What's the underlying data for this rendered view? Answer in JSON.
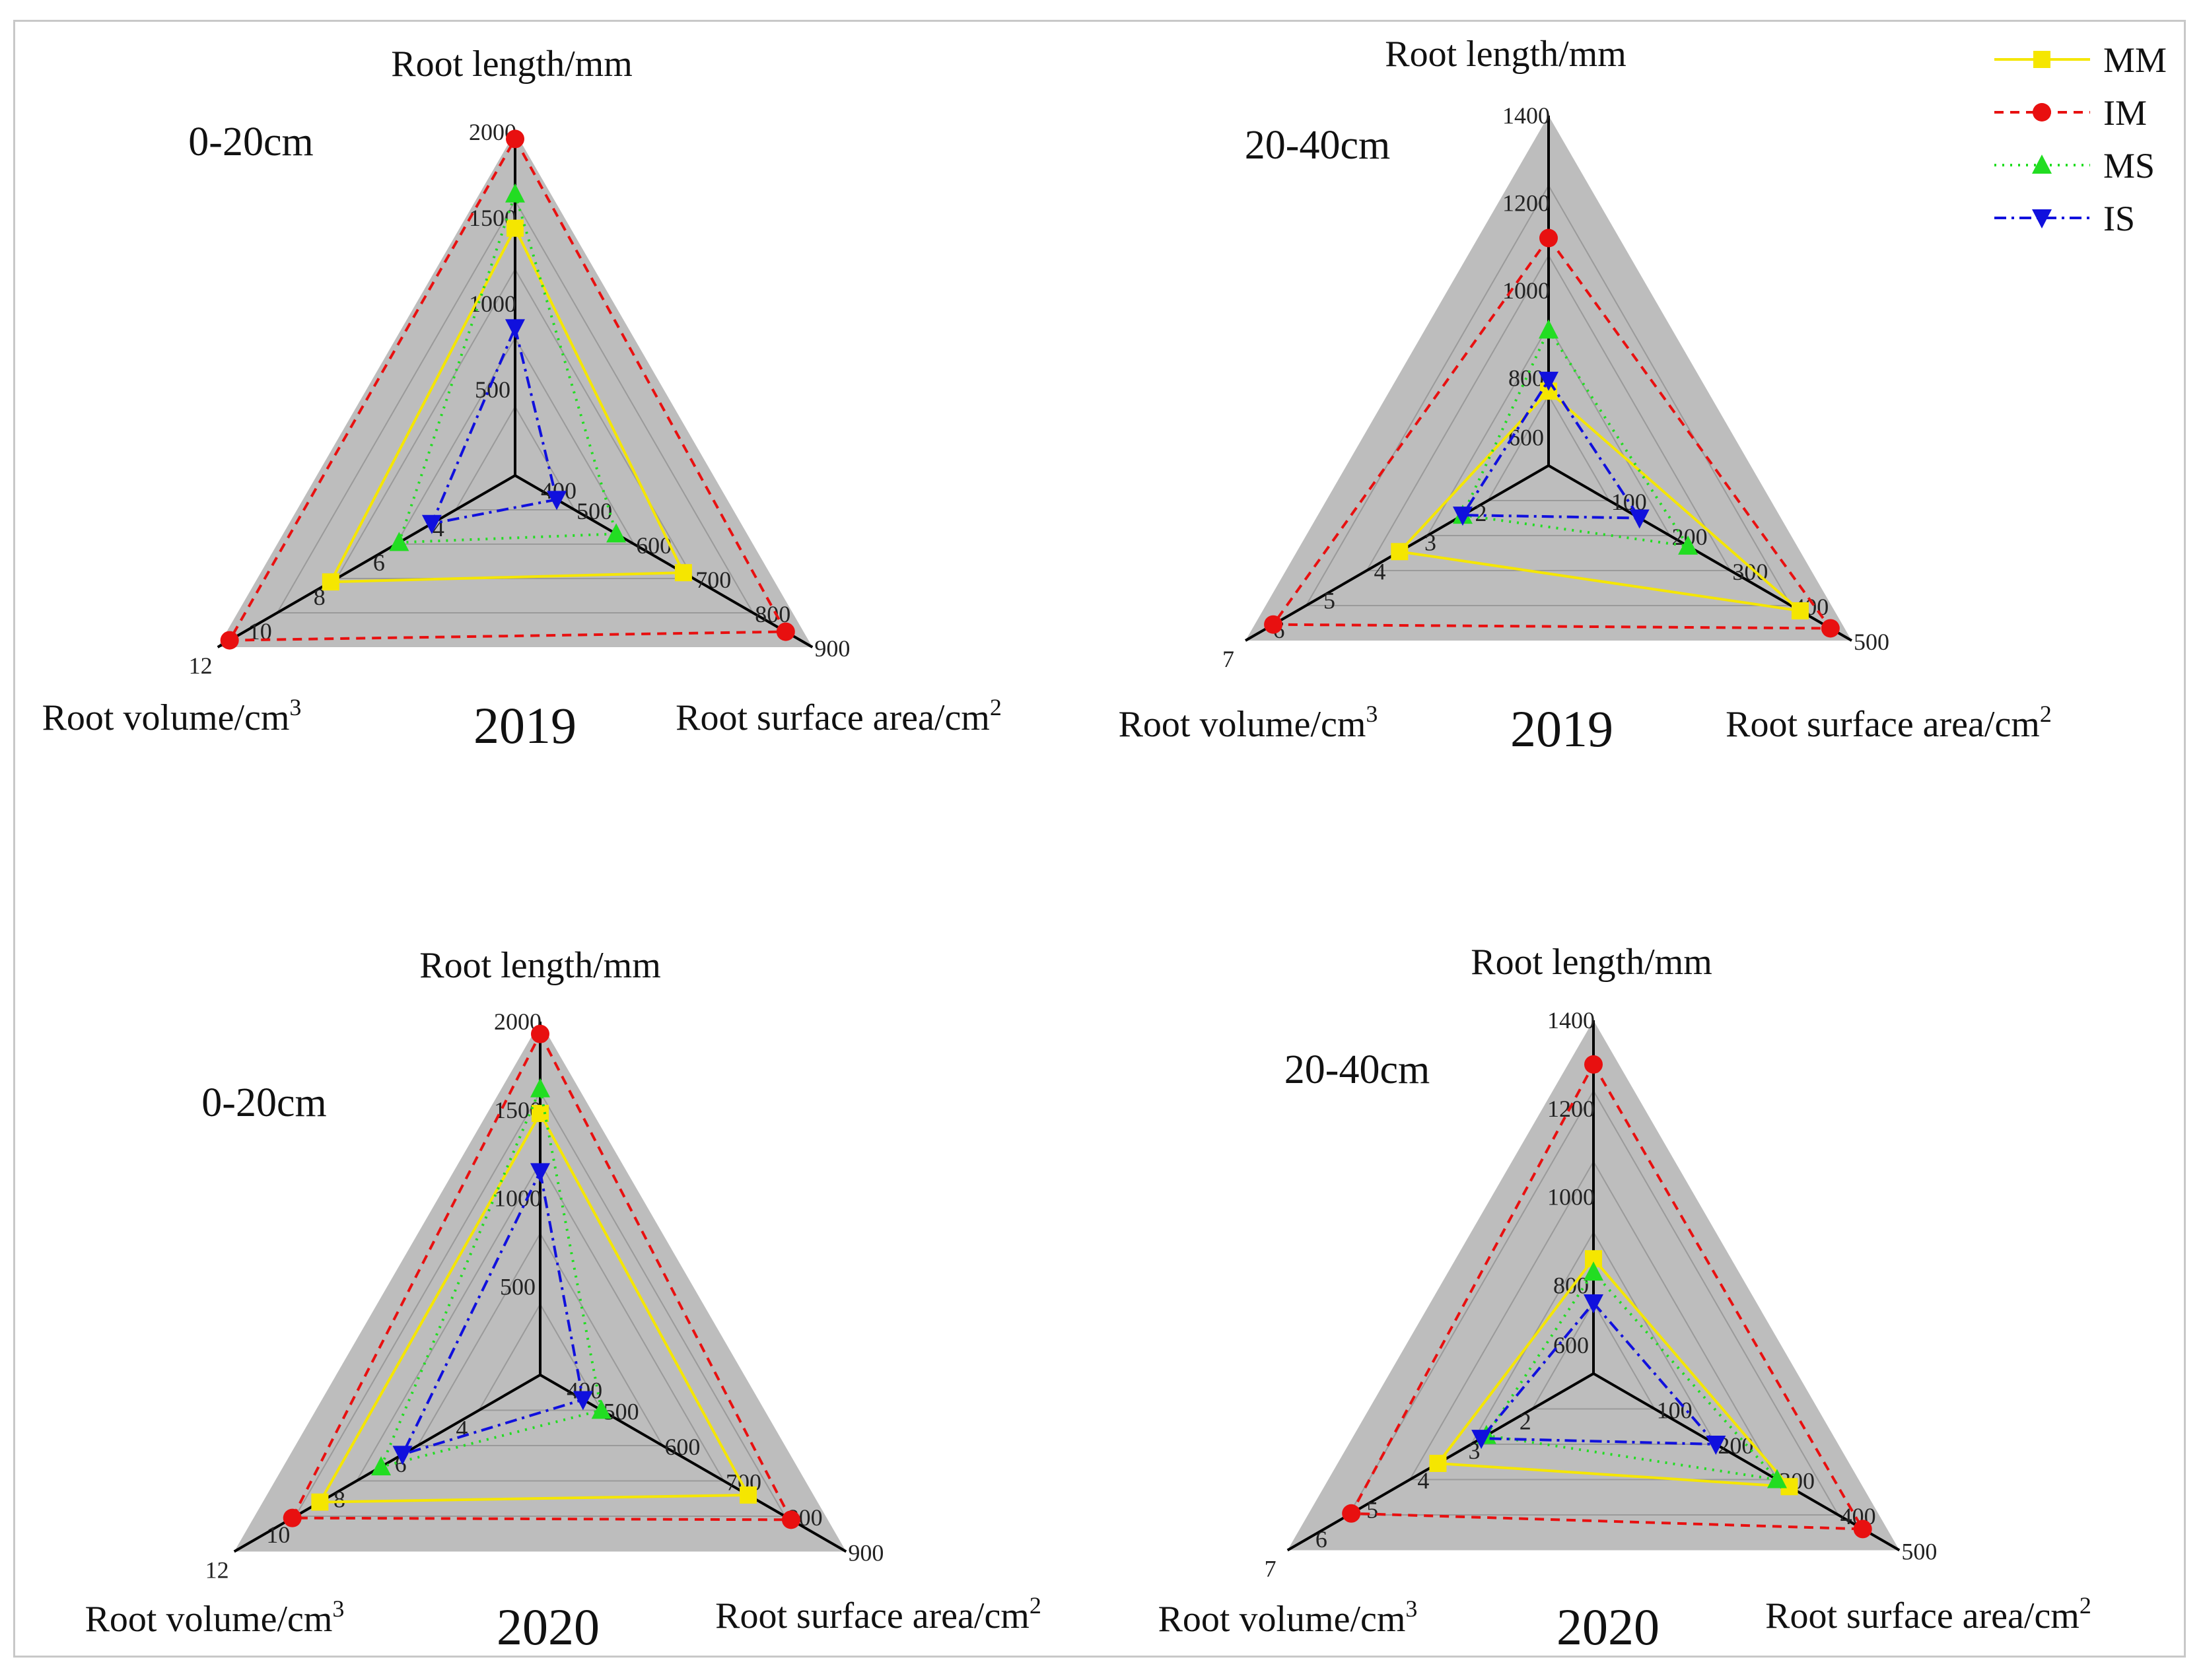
{
  "chart_data": [
    {
      "type": "radar",
      "panel": "2019-0-20cm",
      "year_label": "2019",
      "depth_label": "0-20cm",
      "axes": [
        {
          "key": "length",
          "title": "Root length/mm",
          "min": 0,
          "max": 2000,
          "ticks": [
            "500",
            "1000",
            "1500",
            "2000"
          ]
        },
        {
          "key": "surface",
          "title": "Root surface area/cm",
          "title_sup": "2",
          "min": 400,
          "max": 900,
          "ticks": [
            "400",
            "500",
            "600",
            "700",
            "800",
            "900"
          ]
        },
        {
          "key": "volume",
          "title": "Root volume/cm",
          "title_sup": "3",
          "min": 2,
          "max": 12,
          "ticks": [
            "4",
            "6",
            "8",
            "10",
            "12"
          ]
        }
      ],
      "series": [
        {
          "name": "MM",
          "values": {
            "length": 1440,
            "surface": 683,
            "volume": 8.2
          }
        },
        {
          "name": "IM",
          "values": {
            "length": 1960,
            "surface": 855,
            "volume": 11.6
          }
        },
        {
          "name": "MS",
          "values": {
            "length": 1640,
            "surface": 570,
            "volume": 5.9
          }
        },
        {
          "name": "IS",
          "values": {
            "length": 860,
            "surface": 470,
            "volume": 4.8
          }
        }
      ]
    },
    {
      "type": "radar",
      "panel": "2019-20-40cm",
      "year_label": "2019",
      "depth_label": "20-40cm",
      "axes": [
        {
          "key": "length",
          "title": "Root length/mm",
          "min": 600,
          "max": 1400,
          "ticks": [
            "600",
            "800",
            "1000",
            "1200",
            "1400"
          ]
        },
        {
          "key": "surface",
          "title": "Root surface area/cm",
          "title_sup": "2",
          "min": 0,
          "max": 500,
          "ticks": [
            "100",
            "200",
            "300",
            "400",
            "500"
          ]
        },
        {
          "key": "volume",
          "title": "Root volume/cm",
          "title_sup": "3",
          "min": 1,
          "max": 7,
          "ticks": [
            "2",
            "3",
            "4",
            "5",
            "6",
            "7"
          ]
        }
      ],
      "series": [
        {
          "name": "MM",
          "values": {
            "length": 770,
            "surface": 415,
            "volume": 3.95
          }
        },
        {
          "name": "IM",
          "values": {
            "length": 1120,
            "surface": 465,
            "volume": 6.45
          }
        },
        {
          "name": "MS",
          "values": {
            "length": 910,
            "surface": 230,
            "volume": 2.7
          }
        },
        {
          "name": "IS",
          "values": {
            "length": 795,
            "surface": 150,
            "volume": 2.7
          }
        }
      ]
    },
    {
      "type": "radar",
      "panel": "2020-0-20cm",
      "year_label": "2020",
      "depth_label": "0-20cm",
      "axes": [
        {
          "key": "length",
          "title": "Root length/mm",
          "min": 0,
          "max": 2000,
          "ticks": [
            "500",
            "1000",
            "1500",
            "2000"
          ]
        },
        {
          "key": "surface",
          "title": "Root surface area/cm",
          "title_sup": "2",
          "min": 400,
          "max": 900,
          "ticks": [
            "400",
            "500",
            "600",
            "700",
            "800",
            "900"
          ]
        },
        {
          "key": "volume",
          "title": "Root volume/cm",
          "title_sup": "3",
          "min": 2,
          "max": 12,
          "ticks": [
            "4",
            "6",
            "8",
            "10",
            "12"
          ]
        }
      ],
      "series": [
        {
          "name": "MM",
          "values": {
            "length": 1480,
            "surface": 740,
            "volume": 9.2
          }
        },
        {
          "name": "IM",
          "values": {
            "length": 1930,
            "surface": 810,
            "volume": 10.1
          }
        },
        {
          "name": "MS",
          "values": {
            "length": 1620,
            "surface": 500,
            "volume": 7.2
          }
        },
        {
          "name": "IS",
          "values": {
            "length": 1150,
            "surface": 470,
            "volume": 6.5
          }
        }
      ]
    },
    {
      "type": "radar",
      "panel": "2020-20-40cm",
      "year_label": "2020",
      "depth_label": "20-40cm",
      "axes": [
        {
          "key": "length",
          "title": "Root length/mm",
          "min": 600,
          "max": 1400,
          "ticks": [
            "600",
            "800",
            "1000",
            "1200",
            "1400"
          ]
        },
        {
          "key": "surface",
          "title": "Root surface area/cm",
          "title_sup": "2",
          "min": 0,
          "max": 500,
          "ticks": [
            "100",
            "200",
            "300",
            "400",
            "500"
          ]
        },
        {
          "key": "volume",
          "title": "Root volume/cm",
          "title_sup": "3",
          "min": 1,
          "max": 7,
          "ticks": [
            "2",
            "3",
            "4",
            "5",
            "6",
            "7"
          ]
        }
      ],
      "series": [
        {
          "name": "MM",
          "values": {
            "length": 860,
            "surface": 320,
            "volume": 4.05
          }
        },
        {
          "name": "IM",
          "values": {
            "length": 1300,
            "surface": 440,
            "volume": 5.75
          }
        },
        {
          "name": "MS",
          "values": {
            "length": 830,
            "surface": 300,
            "volume": 3.1
          }
        },
        {
          "name": "IS",
          "values": {
            "length": 760,
            "surface": 200,
            "volume": 3.2
          }
        }
      ]
    }
  ],
  "legend": [
    {
      "name": "MM",
      "color": "#f5e600",
      "dash": "",
      "marker": "square"
    },
    {
      "name": "IM",
      "color": "#e81010",
      "dash": "14,10",
      "marker": "circle"
    },
    {
      "name": "MS",
      "color": "#22dd22",
      "dash": "3,9",
      "marker": "triangle-up"
    },
    {
      "name": "IS",
      "color": "#1010dd",
      "dash": "18,8,4,8",
      "marker": "triangle-down"
    }
  ],
  "colors": {
    "background_triangle": "#bdbdbd",
    "axis_line": "#000000",
    "grid_line": "#9a9a9a"
  }
}
